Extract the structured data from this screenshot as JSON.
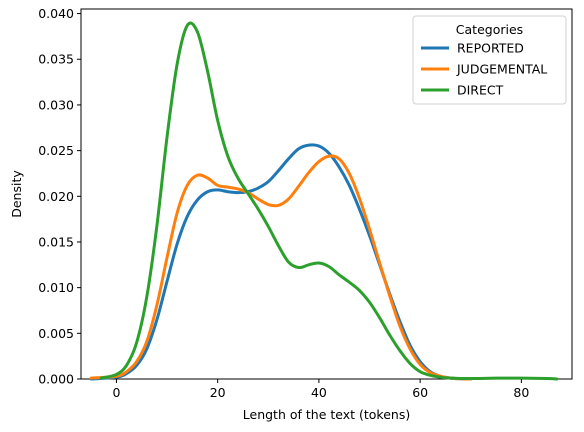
{
  "chart_data": {
    "type": "line",
    "title": "",
    "xlabel": "Length of the text (tokens)",
    "ylabel": "Density",
    "xlim": [
      -7,
      90
    ],
    "ylim": [
      0,
      0.0405
    ],
    "xticks": [
      0,
      20,
      40,
      60,
      80
    ],
    "xtick_labels": [
      "0",
      "20",
      "40",
      "60",
      "80"
    ],
    "yticks": [
      0,
      0.005,
      0.01,
      0.015,
      0.02,
      0.025,
      0.03,
      0.035,
      0.04
    ],
    "ytick_labels": [
      "0.000",
      "0.005",
      "0.010",
      "0.015",
      "0.020",
      "0.025",
      "0.030",
      "0.035",
      "0.040"
    ],
    "grid": false,
    "legend": {
      "title": "Categories",
      "position": "top-right"
    },
    "series": [
      {
        "name": "REPORTED",
        "color": "#1f77b4",
        "x": [
          -5,
          0,
          2,
          4,
          6,
          8,
          10,
          12,
          14,
          16,
          18,
          20,
          22,
          24,
          26,
          28,
          30,
          32,
          34,
          36,
          38,
          40,
          42,
          44,
          46,
          48,
          50,
          52,
          54,
          56,
          58,
          60,
          62,
          64,
          66,
          68,
          70
        ],
        "y": [
          0,
          0.0002,
          0.0006,
          0.0015,
          0.0033,
          0.0065,
          0.0107,
          0.0148,
          0.0178,
          0.0196,
          0.0205,
          0.0207,
          0.0205,
          0.0204,
          0.0205,
          0.0209,
          0.0216,
          0.0228,
          0.0241,
          0.0252,
          0.0256,
          0.0255,
          0.0247,
          0.0232,
          0.0212,
          0.0186,
          0.0157,
          0.0125,
          0.0093,
          0.0063,
          0.0037,
          0.0019,
          0.0008,
          0.0003,
          0.0001,
          3e-05,
          0
        ]
      },
      {
        "name": "JUDGEMENTAL",
        "color": "#ff7f0e",
        "x": [
          -5,
          0,
          2,
          4,
          6,
          8,
          10,
          12,
          14,
          16,
          18,
          20,
          22,
          24,
          26,
          28,
          30,
          32,
          34,
          36,
          38,
          40,
          42,
          44,
          46,
          48,
          50,
          52,
          54,
          56,
          58,
          60,
          62,
          64,
          66,
          68,
          70
        ],
        "y": [
          0.0001,
          0.0003,
          0.0008,
          0.0019,
          0.0041,
          0.0081,
          0.0133,
          0.0182,
          0.0212,
          0.0223,
          0.022,
          0.0212,
          0.021,
          0.0208,
          0.0204,
          0.0197,
          0.0191,
          0.019,
          0.0197,
          0.0211,
          0.0226,
          0.0238,
          0.0244,
          0.0241,
          0.0225,
          0.0198,
          0.0164,
          0.0127,
          0.0091,
          0.0058,
          0.0033,
          0.0016,
          0.0007,
          0.0003,
          0.0001,
          3e-05,
          0
        ]
      },
      {
        "name": "DIRECT",
        "color": "#2ca02c",
        "x": [
          -3,
          0,
          2,
          4,
          6,
          8,
          10,
          12,
          14,
          16,
          18,
          20,
          22,
          24,
          26,
          28,
          30,
          32,
          34,
          36,
          38,
          40,
          42,
          44,
          46,
          48,
          50,
          52,
          54,
          56,
          58,
          60,
          62,
          64,
          66,
          70,
          75,
          80,
          85,
          87
        ],
        "y": [
          0.0001,
          0.0005,
          0.0015,
          0.004,
          0.009,
          0.0168,
          0.0265,
          0.0345,
          0.0387,
          0.038,
          0.0337,
          0.0283,
          0.0244,
          0.022,
          0.0203,
          0.0186,
          0.0167,
          0.0146,
          0.0128,
          0.0122,
          0.0125,
          0.0127,
          0.0123,
          0.0114,
          0.0106,
          0.0097,
          0.0084,
          0.0067,
          0.0048,
          0.0031,
          0.0017,
          0.0008,
          0.0004,
          0.0002,
          0.0001,
          5e-05,
          0.0001,
          0.0001,
          5e-05,
          0
        ]
      }
    ]
  }
}
